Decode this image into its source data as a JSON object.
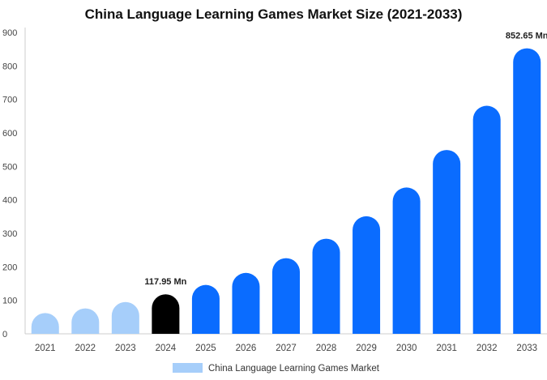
{
  "chart_data": {
    "type": "bar",
    "title": "China Language Learning Games Market Size (2021-2033)",
    "categories": [
      "2021",
      "2022",
      "2023",
      "2024",
      "2025",
      "2026",
      "2027",
      "2028",
      "2029",
      "2030",
      "2031",
      "2032",
      "2033"
    ],
    "series": [
      {
        "name": "China Language Learning Games Market",
        "values": [
          62,
          76,
          95,
          117.95,
          146,
          182,
          226,
          284,
          351,
          437,
          549,
          681,
          852.65
        ]
      }
    ],
    "data_labels": [
      {
        "category": "2024",
        "text": "117.95 Mn"
      },
      {
        "category": "2033",
        "text": "852.65 Mn"
      }
    ],
    "yticks": [
      0,
      100,
      200,
      300,
      400,
      500,
      600,
      700,
      800,
      900
    ],
    "ylim": [
      0,
      900
    ],
    "xlabel": "",
    "ylabel": "",
    "grid": false,
    "legend": {
      "placement": "bottom-center"
    },
    "colors": {
      "historical": "#a6cefa",
      "base_year": "#000000",
      "forecast": "#0a6cff",
      "axis": "#cccccc",
      "legend_swatch": "#a6cefa"
    },
    "historical_years": [
      "2021",
      "2022",
      "2023"
    ],
    "base_year": "2024"
  }
}
